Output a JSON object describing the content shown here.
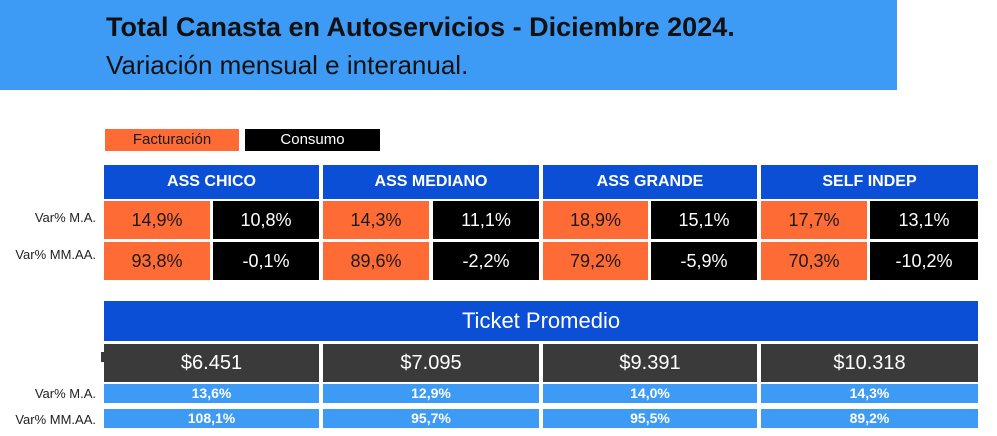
{
  "header": {
    "title": "Total Canasta en Autoservicios - Diciembre 2024.",
    "subtitle": "Variación mensual e interanual."
  },
  "legend": {
    "facturacion": "Facturación",
    "consumo": "Consumo"
  },
  "row_labels": {
    "mom": "Var% M.A.",
    "yoy": "Var% MM.AA."
  },
  "segments": [
    {
      "name": "ASS CHICO",
      "mom": {
        "facturacion": "14,9%",
        "consumo": "10,8%"
      },
      "yoy": {
        "facturacion": "93,8%",
        "consumo": "-0,1%"
      },
      "ticket": "$6.451",
      "ticket_mom": "13,6%",
      "ticket_yoy": "108,1%"
    },
    {
      "name": "ASS MEDIANO",
      "mom": {
        "facturacion": "14,3%",
        "consumo": "11,1%"
      },
      "yoy": {
        "facturacion": "89,6%",
        "consumo": "-2,2%"
      },
      "ticket": "$7.095",
      "ticket_mom": "12,9%",
      "ticket_yoy": "95,7%"
    },
    {
      "name": "ASS GRANDE",
      "mom": {
        "facturacion": "18,9%",
        "consumo": "15,1%"
      },
      "yoy": {
        "facturacion": "79,2%",
        "consumo": "-5,9%"
      },
      "ticket": "$9.391",
      "ticket_mom": "14,0%",
      "ticket_yoy": "95,5%"
    },
    {
      "name": "SELF INDEP",
      "mom": {
        "facturacion": "17,7%",
        "consumo": "13,1%"
      },
      "yoy": {
        "facturacion": "70,3%",
        "consumo": "-10,2%"
      },
      "ticket": "$10.318",
      "ticket_mom": "14,3%",
      "ticket_yoy": "89,2%"
    }
  ],
  "ticket_section": {
    "title": "Ticket Promedio"
  },
  "colors": {
    "header_bg": "#3d9bf6",
    "category_bg": "#0a4fd6",
    "facturacion": "#ff6b35",
    "consumo": "#000000",
    "ticket_bg": "#3a3a3a"
  }
}
